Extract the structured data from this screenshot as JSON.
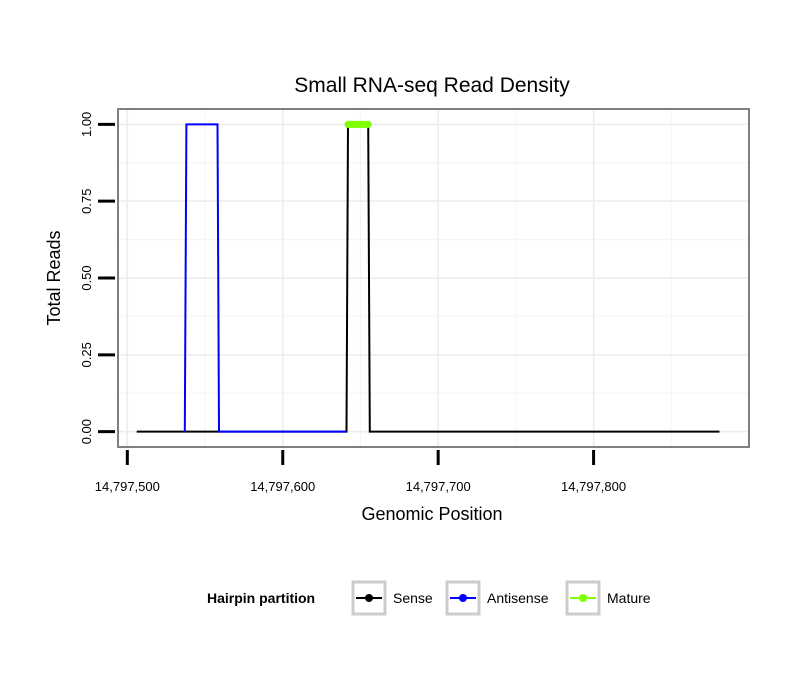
{
  "chart_data": {
    "type": "line",
    "title": "Small RNA-seq Read Density",
    "xlabel": "Genomic Position",
    "ylabel": "Total Reads",
    "xlim": [
      14797494,
      14797900
    ],
    "ylim": [
      -0.05,
      1.05
    ],
    "x_ticks": [
      {
        "value": 14797500,
        "label": "14,797,500"
      },
      {
        "value": 14797600,
        "label": "14,797,600"
      },
      {
        "value": 14797700,
        "label": "14,797,700"
      },
      {
        "value": 14797800,
        "label": "14,797,800"
      }
    ],
    "y_ticks": [
      {
        "value": 0,
        "label": "0.00"
      },
      {
        "value": 0.25,
        "label": "0.25"
      },
      {
        "value": 0.5,
        "label": "0.50"
      },
      {
        "value": 0.75,
        "label": "0.75"
      },
      {
        "value": 1,
        "label": "1.00"
      }
    ],
    "grid": true,
    "legend_position": "bottom",
    "legend_title": "Hairpin partition",
    "series": [
      {
        "name": "Sense",
        "color": "#000000",
        "kind": "line",
        "x": [
          14797506,
          14797641,
          14797642,
          14797655,
          14797656,
          14797881
        ],
        "y": [
          0,
          0,
          1,
          1,
          0,
          0
        ]
      },
      {
        "name": "Antisense",
        "color": "#0000ff",
        "kind": "line",
        "x": [
          14797537,
          14797538,
          14797558,
          14797559,
          14797641
        ],
        "y": [
          0,
          1,
          1,
          0,
          0
        ]
      },
      {
        "name": "Mature",
        "color": "#7fff00",
        "kind": "thick",
        "x": [
          14797642,
          14797655
        ],
        "y": [
          1,
          1
        ]
      }
    ]
  }
}
